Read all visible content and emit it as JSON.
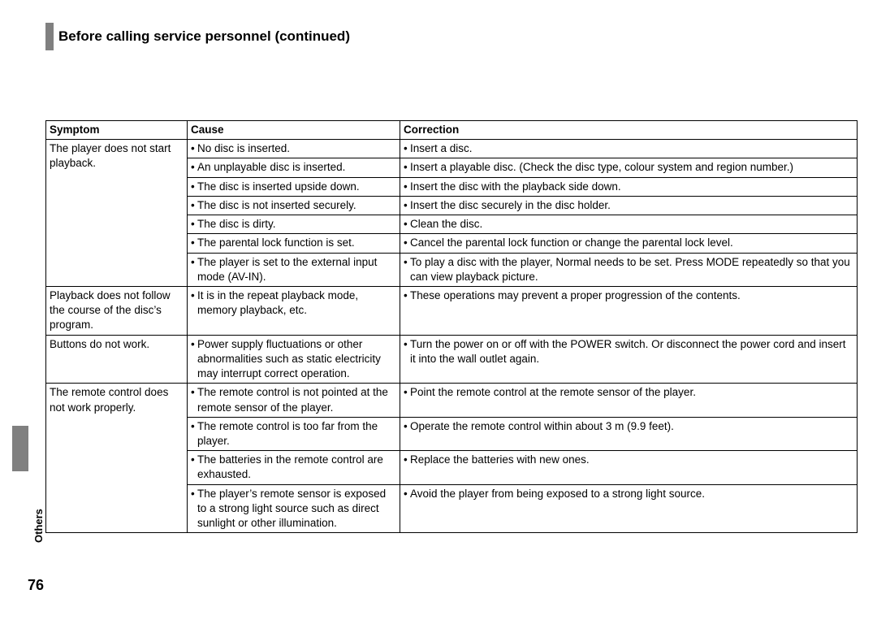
{
  "title": "Before calling service personnel (continued)",
  "side_label": "Others",
  "page_number": "76",
  "table": {
    "headers": {
      "symptom": "Symptom",
      "cause": "Cause",
      "correction": "Correction"
    },
    "groups": [
      {
        "symptom": "The player does not start playback.",
        "rows": [
          {
            "cause": "No disc is inserted.",
            "correction": "Insert a disc."
          },
          {
            "cause": "An unplayable disc is inserted.",
            "correction": "Insert a playable disc. (Check the disc type, colour system and region number.)"
          },
          {
            "cause": "The disc is inserted upside down.",
            "correction": "Insert the disc with the playback side down."
          },
          {
            "cause": "The disc is not inserted securely.",
            "correction": "Insert the disc securely in the disc holder."
          },
          {
            "cause": "The disc is dirty.",
            "correction": "Clean the disc."
          },
          {
            "cause": "The parental lock function is set.",
            "correction": "Cancel the parental lock function or change the parental lock level."
          },
          {
            "cause": "The player is set to the external input mode (AV-IN).",
            "correction": "To play a disc with the player, Normal needs to be set. Press MODE repeatedly so that you can view playback picture."
          }
        ]
      },
      {
        "symptom": "Playback does not follow the course of the disc’s program.",
        "rows": [
          {
            "cause": "It is in the repeat playback mode, memory playback, etc.",
            "correction": "These operations may prevent a proper progression of the contents."
          }
        ]
      },
      {
        "symptom": "Buttons do not work.",
        "rows": [
          {
            "cause": "Power supply fluctuations or other abnormalities such as static electricity may interrupt correct operation.",
            "correction": "Turn the power on or off with the POWER switch. Or disconnect the power cord and insert it into the wall outlet again."
          }
        ]
      },
      {
        "symptom": "The remote control does not work properly.",
        "rows": [
          {
            "cause": "The remote control is not pointed at the remote sensor of the player.",
            "correction": "Point the remote control at the remote sensor of the player."
          },
          {
            "cause": "The remote control is too far from the player.",
            "correction": "Operate the remote control within about 3 m (9.9 feet)."
          },
          {
            "cause": "The batteries in the remote control are exhausted.",
            "correction": "Replace the batteries with new ones."
          },
          {
            "cause": "The player’s remote sensor is exposed to a strong light source such as direct sunlight or other illumination.",
            "correction": "Avoid the player from being exposed to a strong light source."
          }
        ]
      }
    ]
  }
}
